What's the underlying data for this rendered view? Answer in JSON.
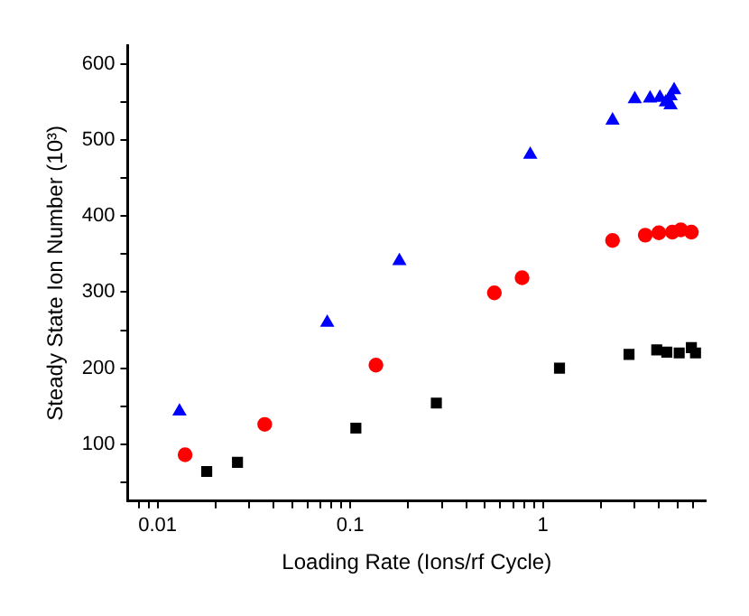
{
  "chart_data": {
    "type": "scatter",
    "xlabel": "Loading Rate (Ions/rf Cycle)",
    "ylabel": "Steady State Ion Number (10³)",
    "log": "x",
    "grid": false,
    "legend": false,
    "xlim": [
      0.007,
      7
    ],
    "ylim": [
      25,
      625
    ],
    "xticks": [
      {
        "value": 0.008,
        "label": null
      },
      {
        "value": 0.009,
        "label": null
      },
      0.01,
      {
        "value": 0.02,
        "label": null
      },
      {
        "value": 0.03,
        "label": null
      },
      {
        "value": 0.04,
        "label": null
      },
      {
        "value": 0.05,
        "label": null
      },
      {
        "value": 0.06,
        "label": null
      },
      {
        "value": 0.07,
        "label": null
      },
      {
        "value": 0.08,
        "label": null
      },
      {
        "value": 0.09,
        "label": null
      },
      0.1,
      {
        "value": 0.2,
        "label": null
      },
      {
        "value": 0.3,
        "label": null
      },
      {
        "value": 0.4,
        "label": null
      },
      {
        "value": 0.5,
        "label": null
      },
      {
        "value": 0.6,
        "label": null
      },
      {
        "value": 0.7,
        "label": null
      },
      {
        "value": 0.8,
        "label": null
      },
      {
        "value": 0.9,
        "label": null
      },
      1,
      {
        "value": 2,
        "label": null
      },
      {
        "value": 3,
        "label": null
      },
      {
        "value": 4,
        "label": null
      },
      {
        "value": 5,
        "label": null
      },
      {
        "value": 6,
        "label": null
      }
    ],
    "yticks": [
      {
        "value": 50,
        "label": null
      },
      100,
      {
        "value": 150,
        "label": null
      },
      200,
      {
        "value": 250,
        "label": null
      },
      300,
      {
        "value": 350,
        "label": null
      },
      400,
      {
        "value": 450,
        "label": null
      },
      500,
      {
        "value": 550,
        "label": null
      },
      600
    ],
    "series": [
      {
        "color": "#000000",
        "marker": "square",
        "x": [
          0.018,
          0.026,
          0.107,
          0.28,
          1.22,
          2.8,
          3.9,
          4.4,
          5.1,
          5.9,
          6.2
        ],
        "values": [
          64,
          76,
          121,
          154,
          200,
          218,
          224,
          221,
          220,
          227,
          220
        ]
      },
      {
        "color": "#ff0000",
        "marker": "circle",
        "x": [
          0.0139,
          0.036,
          0.136,
          0.56,
          0.78,
          2.3,
          3.4,
          4.0,
          4.7,
          5.2,
          5.9
        ],
        "values": [
          86,
          126,
          204,
          299,
          319,
          368,
          375,
          378,
          379,
          382,
          379
        ]
      },
      {
        "color": "#0000ff",
        "marker": "triangle",
        "x": [
          0.013,
          0.076,
          0.18,
          0.86,
          2.3,
          3.0,
          3.6,
          4.05,
          4.35,
          4.6,
          4.8,
          4.6
        ],
        "values": [
          143,
          260,
          341,
          481,
          526,
          554,
          555,
          556,
          550,
          558,
          566,
          546
        ]
      }
    ]
  }
}
